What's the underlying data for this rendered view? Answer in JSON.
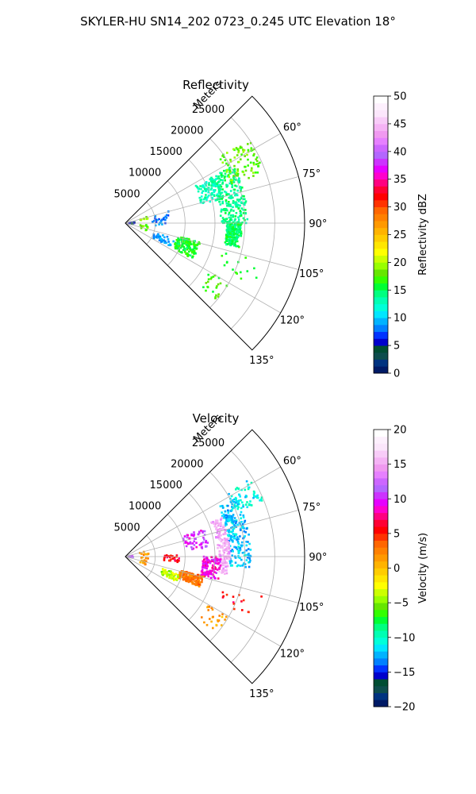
{
  "title": "SKYLER-HU  SN14_202  0723_0.245 UTC Elevation 18°",
  "chart_data": [
    {
      "type": "polar-sector",
      "title": "Reflectivity",
      "range_label": "Meters",
      "r_ticks": [
        "5000",
        "10000",
        "15000",
        "20000",
        "25000"
      ],
      "r_tick_values": [
        5000,
        10000,
        15000,
        20000,
        25000
      ],
      "r_max": 30000,
      "theta_ticks": [
        "60°",
        "75°",
        "90°",
        "105°",
        "120°",
        "135°"
      ],
      "theta_tick_values": [
        60,
        75,
        90,
        105,
        120,
        135
      ],
      "theta_range": [
        45,
        135
      ],
      "grid": true,
      "colorbar": {
        "label": "Reflectivity dBZ",
        "ticks": [
          "0",
          "5",
          "10",
          "15",
          "20",
          "25",
          "30",
          "35",
          "40",
          "45",
          "50"
        ],
        "range": [
          0,
          50
        ],
        "colors": [
          "#001a66",
          "#003380",
          "#0d4d4d",
          "#004d33",
          "#0000cc",
          "#0033ff",
          "#0080ff",
          "#00b3ff",
          "#00e6ff",
          "#00ffd9",
          "#00ffb3",
          "#00ff80",
          "#00ff33",
          "#33ff00",
          "#66e600",
          "#99ff00",
          "#ccff00",
          "#ffff00",
          "#ffe600",
          "#ffcc00",
          "#ffb300",
          "#ff9900",
          "#ff8000",
          "#ff6600",
          "#ff3300",
          "#ff0000",
          "#ff0033",
          "#ff0080",
          "#ff00cc",
          "#e600ff",
          "#cc33ff",
          "#b366ff",
          "#cc66ff",
          "#e680ff",
          "#f099f0",
          "#f5b3f5",
          "#f8ccf8",
          "#fbe6fb",
          "#fdf0fd",
          "#ffffff"
        ]
      },
      "echo_clusters": [
        {
          "theta": [
            62,
            90
          ],
          "r": [
            16000,
            20500
          ],
          "value": 14,
          "count": 260
        },
        {
          "theta": [
            90,
            102
          ],
          "r": [
            17000,
            19500
          ],
          "value": 15,
          "count": 200
        },
        {
          "theta": [
            55,
            70
          ],
          "r": [
            19000,
            25000
          ],
          "value": 18,
          "count": 90
        },
        {
          "theta": [
            62,
            76
          ],
          "r": [
            13000,
            17000
          ],
          "value": 13,
          "count": 100
        },
        {
          "theta": [
            104,
            118
          ],
          "r": [
            9000,
            13000
          ],
          "value": 16,
          "count": 150
        },
        {
          "theta": [
            108,
            118
          ],
          "r": [
            5000,
            9000
          ],
          "value": 9,
          "count": 40
        },
        {
          "theta": [
            75,
            96
          ],
          "r": [
            4500,
            7500
          ],
          "value": 8,
          "count": 25
        },
        {
          "theta": [
            95,
            110
          ],
          "r": [
            2500,
            4000
          ],
          "value": 18,
          "count": 15
        },
        {
          "theta": [
            72,
            80
          ],
          "r": [
            2500,
            4000
          ],
          "value": 19,
          "count": 10
        },
        {
          "theta": [
            85,
            95
          ],
          "r": [
            500,
            1600
          ],
          "value": 5,
          "count": 10
        },
        {
          "theta": [
            120,
            130
          ],
          "r": [
            16000,
            20000
          ],
          "value": 17,
          "count": 25
        },
        {
          "theta": [
            106,
            116
          ],
          "r": [
            17000,
            24000
          ],
          "value": 16,
          "count": 15
        }
      ]
    },
    {
      "type": "polar-sector",
      "title": "Velocity",
      "range_label": "Meters",
      "r_ticks": [
        "5000",
        "10000",
        "15000",
        "20000",
        "25000"
      ],
      "r_tick_values": [
        5000,
        10000,
        15000,
        20000,
        25000
      ],
      "r_max": 30000,
      "theta_ticks": [
        "60°",
        "75°",
        "90°",
        "105°",
        "120°",
        "135°"
      ],
      "theta_tick_values": [
        60,
        75,
        90,
        105,
        120,
        135
      ],
      "theta_range": [
        45,
        135
      ],
      "grid": true,
      "colorbar": {
        "label": "Velocity (m/s)",
        "ticks": [
          "−20",
          "−15",
          "−10",
          "−5",
          "0",
          "5",
          "10",
          "15",
          "20"
        ],
        "range": [
          -20,
          20
        ],
        "colors": [
          "#001a66",
          "#003380",
          "#0d4d4d",
          "#004d33",
          "#0000cc",
          "#0033ff",
          "#0080ff",
          "#00b3ff",
          "#00e6ff",
          "#00ffd9",
          "#00ffb3",
          "#00ff80",
          "#00ff33",
          "#33ff00",
          "#66e600",
          "#99ff00",
          "#ccff00",
          "#ffff00",
          "#ffe600",
          "#ffcc00",
          "#ffb300",
          "#ff9900",
          "#ff8000",
          "#ff6600",
          "#ff3300",
          "#ff0000",
          "#ff0033",
          "#ff0080",
          "#ff00cc",
          "#e600ff",
          "#cc33ff",
          "#b366ff",
          "#cc66ff",
          "#e680ff",
          "#f099f0",
          "#f5b3f5",
          "#f8ccf8",
          "#fbe6fb",
          "#fdf0fd",
          "#ffffff"
        ]
      },
      "echo_clusters": [
        {
          "theta": [
            62,
            95
          ],
          "r": [
            17500,
            21000
          ],
          "value": -12,
          "count": 230
        },
        {
          "theta": [
            58,
            68
          ],
          "r": [
            20000,
            25000
          ],
          "value": -11,
          "count": 60
        },
        {
          "theta": [
            68,
            100
          ],
          "r": [
            15500,
            17500
          ],
          "value": 15,
          "count": 180
        },
        {
          "theta": [
            90,
            104
          ],
          "r": [
            13000,
            16000
          ],
          "value": 9,
          "count": 120
        },
        {
          "theta": [
            104,
            112
          ],
          "r": [
            9500,
            13500
          ],
          "value": 3,
          "count": 150
        },
        {
          "theta": [
            108,
            116
          ],
          "r": [
            6500,
            9500
          ],
          "value": -4,
          "count": 60
        },
        {
          "theta": [
            70,
            84
          ],
          "r": [
            10000,
            14000
          ],
          "value": 10,
          "count": 60
        },
        {
          "theta": [
            88,
            96
          ],
          "r": [
            6500,
            9000
          ],
          "value": 6,
          "count": 25
        },
        {
          "theta": [
            75,
            95
          ],
          "r": [
            2500,
            4000
          ],
          "value": 2,
          "count": 15
        },
        {
          "theta": [
            98,
            112
          ],
          "r": [
            2500,
            4000
          ],
          "value": 1,
          "count": 12
        },
        {
          "theta": [
            86,
            94
          ],
          "r": [
            400,
            1400
          ],
          "value": 11,
          "count": 8
        },
        {
          "theta": [
            120,
            130
          ],
          "r": [
            16000,
            20000
          ],
          "value": 1,
          "count": 25
        },
        {
          "theta": [
            106,
            116
          ],
          "r": [
            17000,
            24000
          ],
          "value": 6,
          "count": 15
        }
      ]
    }
  ]
}
